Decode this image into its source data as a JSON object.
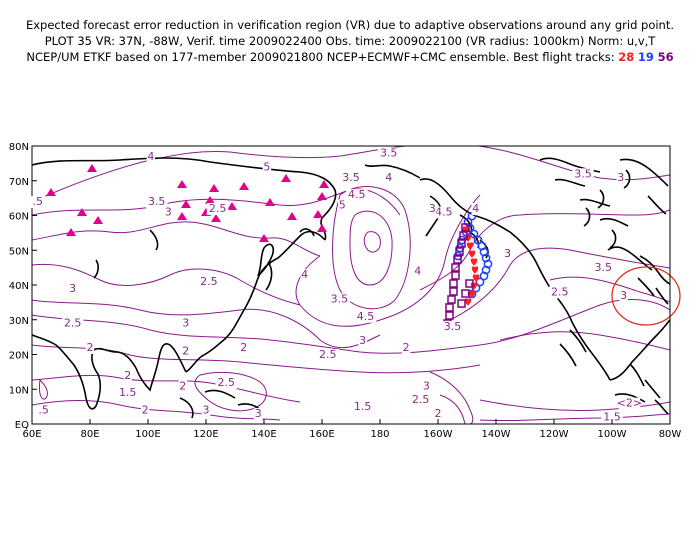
{
  "title": {
    "line1": "Expected forecast error reduction in verification region (VR) due to adaptive observations around any grid point.",
    "line2": "PLOT 35 VR: 37N, -88W, Verif. time 2009022400 Obs. time: 2009022100 (VR radius: 1000km) Norm: u,v,T",
    "line3_prefix": "NCEP/UM ETKF based on 177-member 2009021800 NCEP+ECMWF+CMC ensemble. Best flight tracks:",
    "tracks": [
      {
        "id": "28",
        "color": "#ff2020"
      },
      {
        "id": "19",
        "color": "#2040ff"
      },
      {
        "id": "56",
        "color": "#800080"
      }
    ]
  },
  "map": {
    "lon_range": [
      60,
      280
    ],
    "lat_range": [
      0,
      80
    ],
    "x_ticks": [
      "60E",
      "80E",
      "100E",
      "120E",
      "140E",
      "160E",
      "180",
      "160W",
      "140W",
      "120W",
      "100W",
      "80W"
    ],
    "y_ticks": [
      "EQ",
      "10N",
      "20N",
      "30N",
      "40N",
      "50N",
      "60N",
      "70N",
      "80N"
    ],
    "contour_color": "#8b1a8b",
    "contour_labels": [
      {
        "text": "4",
        "lon": 101,
        "lat": 76
      },
      {
        "text": "3.5",
        "lon": 183,
        "lat": 77
      },
      {
        "text": "3.5",
        "lon": 250,
        "lat": 71
      },
      {
        "text": "5",
        "lon": 141,
        "lat": 73
      },
      {
        "text": "3",
        "lon": 263,
        "lat": 70
      },
      {
        "text": ".5",
        "lon": 62,
        "lat": 63
      },
      {
        "text": "3.5",
        "lon": 103,
        "lat": 63
      },
      {
        "text": "3",
        "lon": 107,
        "lat": 60
      },
      {
        "text": "2.5",
        "lon": 124,
        "lat": 61
      },
      {
        "text": "3.5",
        "lon": 170,
        "lat": 70
      },
      {
        "text": "4.5",
        "lon": 172,
        "lat": 65
      },
      {
        "text": "4",
        "lon": 183,
        "lat": 70
      },
      {
        "text": "5",
        "lon": 167,
        "lat": 62
      },
      {
        "text": "4.5",
        "lon": 202,
        "lat": 60
      },
      {
        "text": "4",
        "lon": 213,
        "lat": 61
      },
      {
        "text": "3",
        "lon": 198,
        "lat": 61
      },
      {
        "text": "3",
        "lon": 224,
        "lat": 48
      },
      {
        "text": "2.5",
        "lon": 121,
        "lat": 40
      },
      {
        "text": "4",
        "lon": 154,
        "lat": 42
      },
      {
        "text": "3.5",
        "lon": 166,
        "lat": 35
      },
      {
        "text": "4.5",
        "lon": 175,
        "lat": 30
      },
      {
        "text": "4",
        "lon": 193,
        "lat": 43
      },
      {
        "text": "3.5",
        "lon": 205,
        "lat": 27
      },
      {
        "text": "3.5",
        "lon": 257,
        "lat": 44
      },
      {
        "text": "2.5",
        "lon": 242,
        "lat": 37
      },
      {
        "text": "3",
        "lon": 264,
        "lat": 36
      },
      {
        "text": "3",
        "lon": 74,
        "lat": 38
      },
      {
        "text": "2.5",
        "lon": 74,
        "lat": 28
      },
      {
        "text": "3",
        "lon": 113,
        "lat": 28
      },
      {
        "text": "2",
        "lon": 80,
        "lat": 21
      },
      {
        "text": "2",
        "lon": 113,
        "lat": 20
      },
      {
        "text": "2",
        "lon": 133,
        "lat": 21
      },
      {
        "text": "2.5",
        "lon": 162,
        "lat": 19
      },
      {
        "text": "3",
        "lon": 174,
        "lat": 23
      },
      {
        "text": "2",
        "lon": 189,
        "lat": 21
      },
      {
        "text": "2",
        "lon": 93,
        "lat": 13
      },
      {
        "text": "1.5",
        "lon": 93,
        "lat": 8
      },
      {
        "text": "2",
        "lon": 112,
        "lat": 10
      },
      {
        "text": "2.5",
        "lon": 127,
        "lat": 11
      },
      {
        "text": "3",
        "lon": 138,
        "lat": 2
      },
      {
        "text": "3",
        "lon": 120,
        "lat": 3
      },
      {
        "text": "2",
        "lon": 99,
        "lat": 3
      },
      {
        "text": ".5",
        "lon": 64,
        "lat": 3
      },
      {
        "text": "3",
        "lon": 196,
        "lat": 10
      },
      {
        "text": "2.5",
        "lon": 194,
        "lat": 6
      },
      {
        "text": "2",
        "lon": 200,
        "lat": 2
      },
      {
        "text": "1.5",
        "lon": 174,
        "lat": 4
      },
      {
        "text": "1.5",
        "lon": 260,
        "lat": 1
      },
      {
        "text": "<2>",
        "lon": 266,
        "lat": 5
      }
    ],
    "verification_region": {
      "lon": 272,
      "lat": 37
    }
  }
}
